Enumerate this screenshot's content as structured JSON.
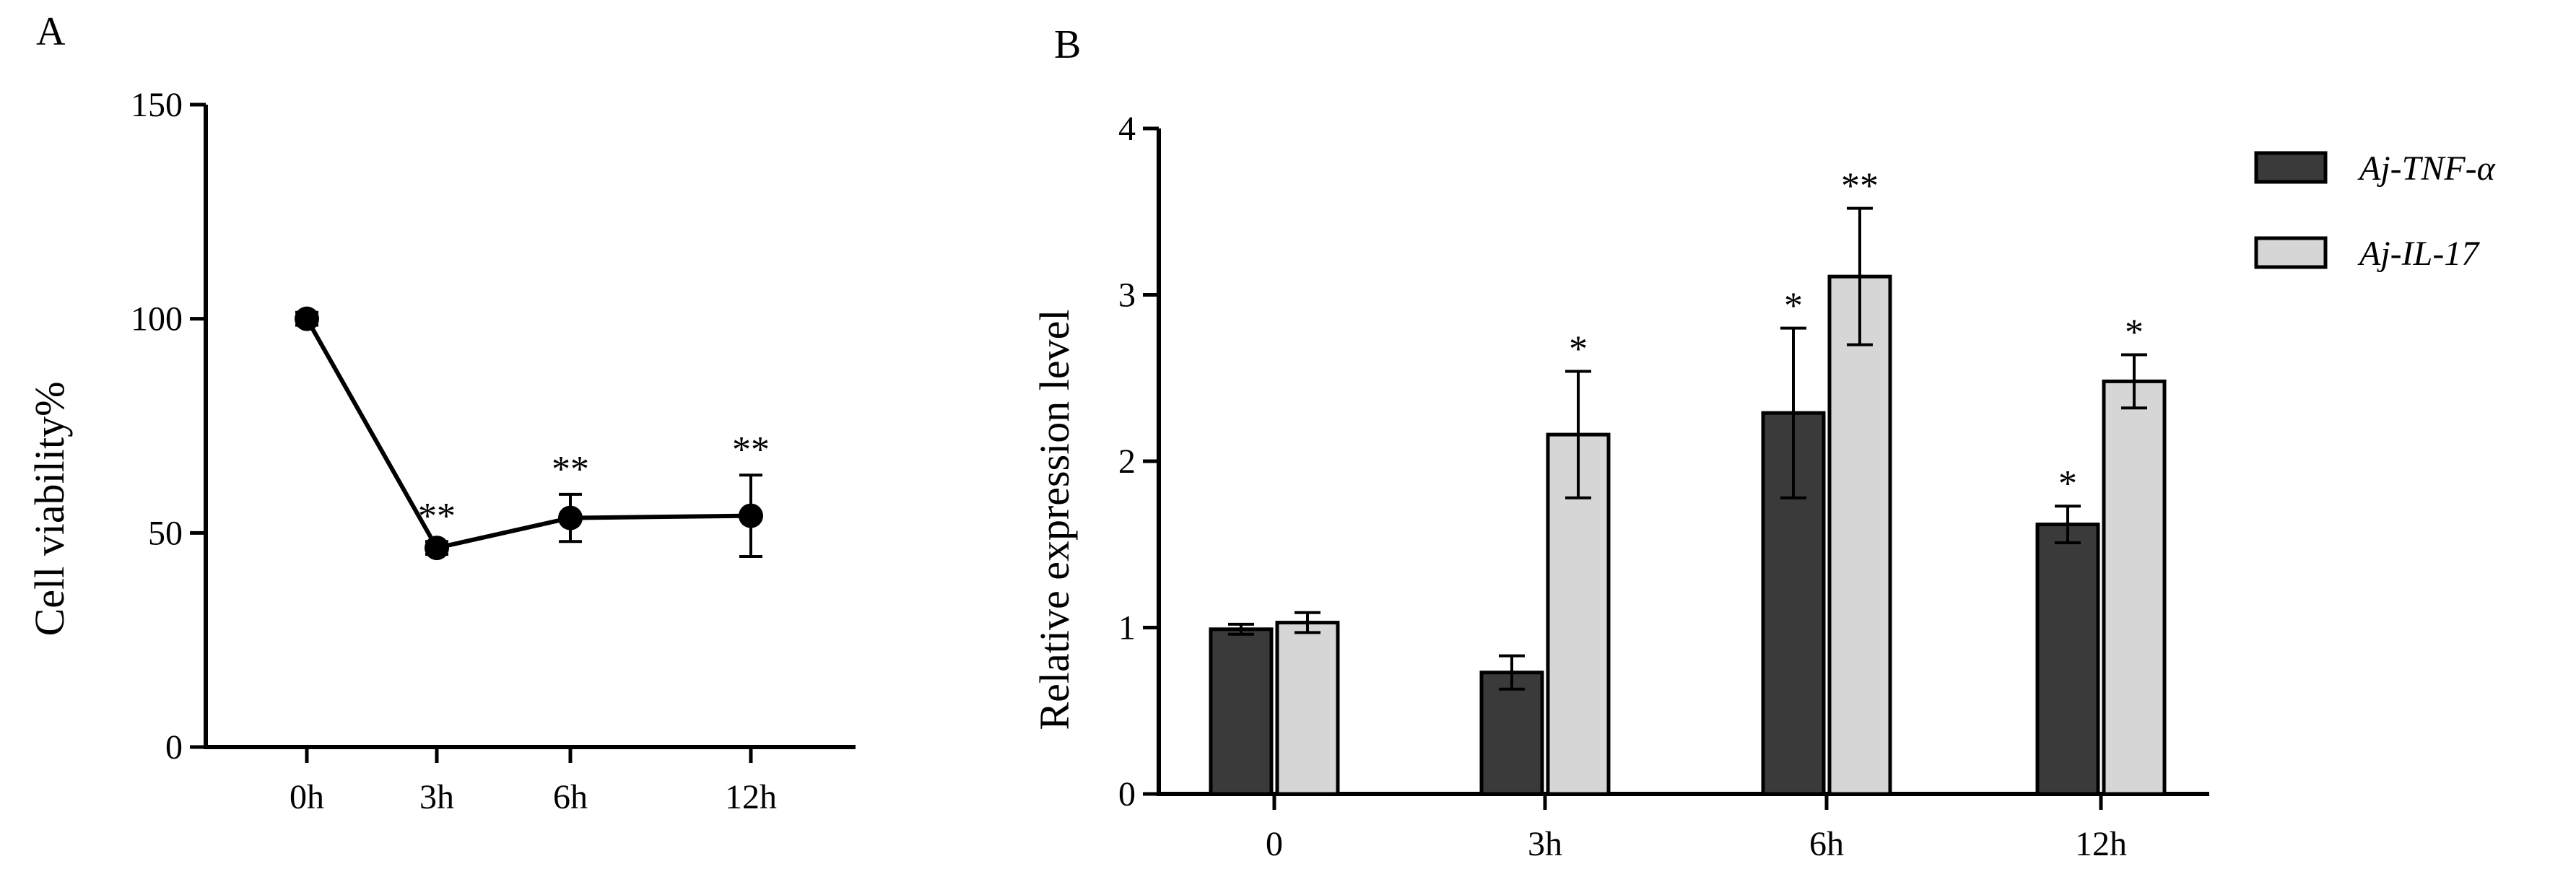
{
  "chart_data": [
    {
      "panel": "A",
      "type": "line",
      "categories": [
        "0h",
        "3h",
        "6h",
        "12h"
      ],
      "series": [
        {
          "values": [
            100,
            46.5,
            53.5,
            54
          ],
          "errors": [
            1.5,
            1.5,
            5.5,
            9.5
          ],
          "significance": [
            "",
            "**",
            "**",
            "**"
          ]
        }
      ],
      "ylabel": "Cell viability%",
      "ylim": [
        0,
        150
      ],
      "yticks": [
        0,
        50,
        100,
        150
      ],
      "grid": false,
      "color": "#000000"
    },
    {
      "panel": "B",
      "type": "bar",
      "categories": [
        "0",
        "3h",
        "6h",
        "12h"
      ],
      "series": [
        {
          "name": "Aj-TNF-α",
          "values": [
            0.99,
            0.73,
            2.29,
            1.62
          ],
          "errors": [
            0.03,
            0.1,
            0.51,
            0.11
          ],
          "significance": [
            "",
            "",
            "*",
            "*"
          ],
          "color": "#3a3a3a"
        },
        {
          "name": "Aj-IL-17",
          "values": [
            1.03,
            2.16,
            3.11,
            2.48
          ],
          "errors": [
            0.06,
            0.38,
            0.41,
            0.16
          ],
          "significance": [
            "",
            "*",
            "**",
            "*"
          ],
          "color": "#d6d6d6"
        }
      ],
      "ylabel": "Relative expression level",
      "ylim": [
        0,
        4
      ],
      "yticks": [
        0,
        1,
        2,
        3,
        4
      ],
      "grid": false,
      "legend": "top-right"
    }
  ]
}
